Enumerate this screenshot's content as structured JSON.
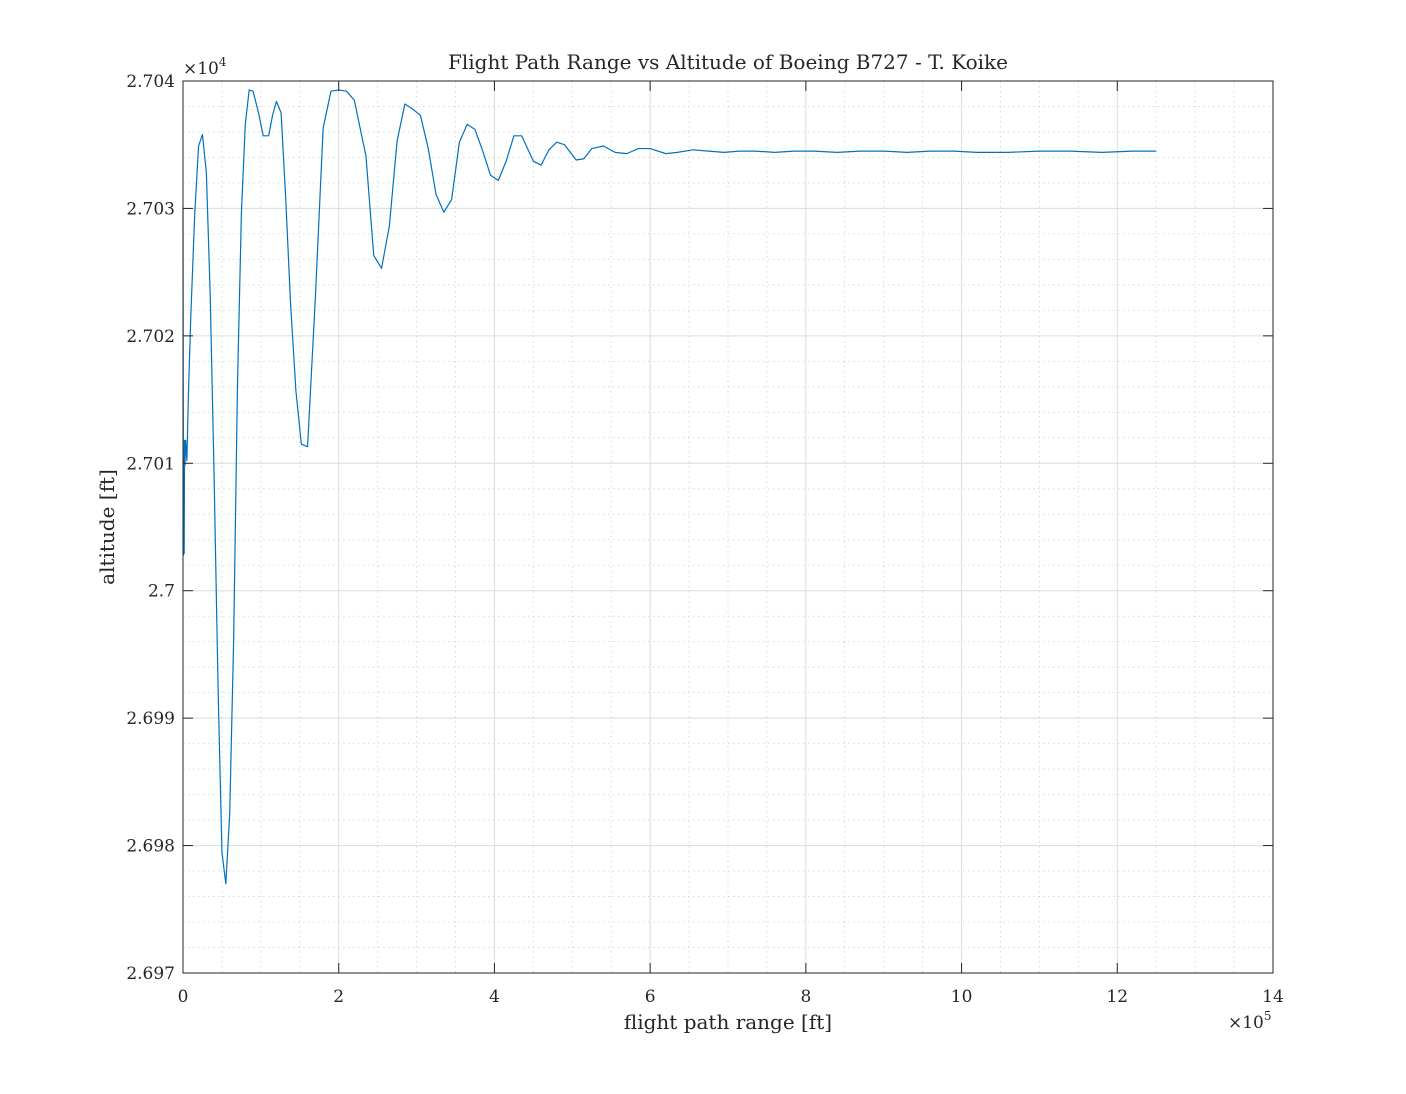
{
  "chart_data": {
    "type": "line",
    "title": "Flight Path Range vs Altitude of Boeing B727 - T. Koike",
    "xlabel": "flight path range [ft]",
    "ylabel": "altitude [ft]",
    "x_exponent_label": "×10",
    "x_exponent_power": "5",
    "y_exponent_label": "×10",
    "y_exponent_power": "4",
    "x_multiplier": 100000,
    "y_multiplier": 10000,
    "xlim": [
      0,
      14
    ],
    "ylim": [
      2.697,
      2.704
    ],
    "x_ticks": [
      "0",
      "2",
      "4",
      "6",
      "8",
      "10",
      "12",
      "14"
    ],
    "y_ticks": [
      "2.697",
      "2.698",
      "2.699",
      "2.7",
      "2.701",
      "2.702",
      "2.703",
      "2.704"
    ],
    "x_tick_values": [
      0,
      2,
      4,
      6,
      8,
      10,
      12,
      14
    ],
    "y_tick_values": [
      2.697,
      2.698,
      2.699,
      2.7,
      2.701,
      2.702,
      2.703,
      2.704
    ],
    "grid": true,
    "minor_grid": true,
    "legend": "none",
    "line_color": "#0072BD",
    "series": [
      {
        "x": [
          0,
          0.005,
          0.01,
          0.015,
          0.02,
          0.025,
          0.035,
          0.05,
          0.07,
          0.1,
          0.15,
          0.2,
          0.25,
          0.3,
          0.35,
          0.4,
          0.45,
          0.5,
          0.55,
          0.6,
          0.65,
          0.7,
          0.75,
          0.8,
          0.85,
          0.9,
          0.97,
          1.03,
          1.1,
          1.15,
          1.2,
          1.26,
          1.32,
          1.38,
          1.45,
          1.52,
          1.6,
          1.7,
          1.8,
          1.9,
          2.0,
          2.1,
          2.2,
          2.35,
          2.45,
          2.55,
          2.65,
          2.75,
          2.85,
          2.95,
          3.05,
          3.15,
          3.25,
          3.35,
          3.45,
          3.55,
          3.65,
          3.75,
          3.85,
          3.95,
          4.05,
          4.15,
          4.25,
          4.35,
          4.5,
          4.6,
          4.7,
          4.8,
          4.9,
          5.05,
          5.15,
          5.25,
          5.4,
          5.55,
          5.7,
          5.85,
          6.0,
          6.2,
          6.35,
          6.55,
          6.75,
          6.95,
          7.15,
          7.35,
          7.6,
          7.85,
          8.1,
          8.4,
          8.7,
          9.0,
          9.3,
          9.6,
          9.9,
          10.2,
          10.6,
          11.0,
          11.4,
          11.8,
          12.2,
          12.5
        ],
        "y": [
          2.70301,
          2.70028,
          2.70101,
          2.70029,
          2.70118,
          2.70098,
          2.70118,
          2.70102,
          2.70155,
          2.70215,
          2.70295,
          2.70349,
          2.70358,
          2.70328,
          2.70231,
          2.70088,
          2.69925,
          2.69795,
          2.6977,
          2.69825,
          2.6996,
          2.70162,
          2.70296,
          2.70366,
          2.70393,
          2.70392,
          2.70375,
          2.70357,
          2.70357,
          2.70373,
          2.70384,
          2.70375,
          2.70307,
          2.70227,
          2.70157,
          2.70115,
          2.70113,
          2.7023,
          2.70363,
          2.70392,
          2.70393,
          2.70392,
          2.70385,
          2.70341,
          2.70263,
          2.70253,
          2.70286,
          2.70353,
          2.70382,
          2.70378,
          2.70373,
          2.70347,
          2.70311,
          2.70297,
          2.70307,
          2.70352,
          2.70366,
          2.70362,
          2.70345,
          2.70326,
          2.70322,
          2.70337,
          2.70357,
          2.70357,
          2.70337,
          2.70334,
          2.70346,
          2.70352,
          2.7035,
          2.70338,
          2.70339,
          2.70347,
          2.70349,
          2.70344,
          2.70343,
          2.70347,
          2.70347,
          2.70343,
          2.70344,
          2.70346,
          2.70345,
          2.70344,
          2.70345,
          2.70345,
          2.70344,
          2.70345,
          2.70345,
          2.70344,
          2.70345,
          2.70345,
          2.70344,
          2.70345,
          2.70345,
          2.70344,
          2.70344,
          2.70345,
          2.70345,
          2.70344,
          2.70345,
          2.70345
        ]
      }
    ]
  }
}
